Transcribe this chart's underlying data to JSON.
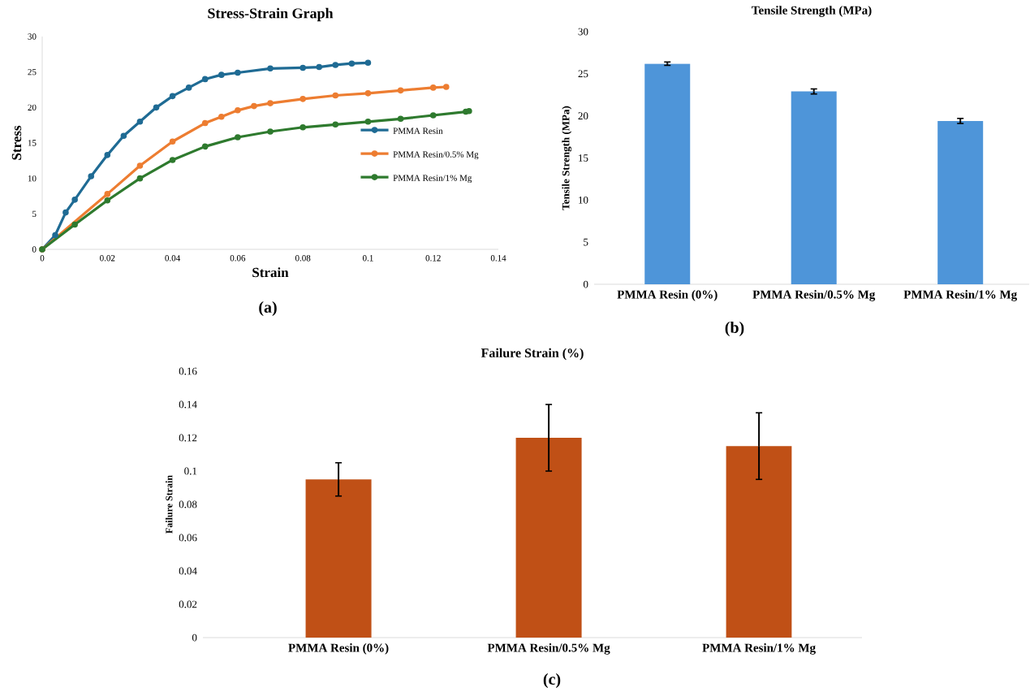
{
  "chart_data": [
    {
      "type": "line",
      "title": "Stress-Strain Graph",
      "xlabel": "Strain",
      "ylabel": "Stress",
      "annotations": [
        "(a)"
      ],
      "xlim": [
        0,
        0.14
      ],
      "xticks": [
        0,
        0.02,
        0.04,
        0.06,
        0.08,
        0.1,
        0.12,
        0.14
      ],
      "ylim": [
        0,
        30
      ],
      "yticks": [
        0,
        5,
        10,
        15,
        20,
        25,
        30
      ],
      "marker": "circle",
      "legend": "right",
      "series": [
        {
          "name": "PMMA Resin",
          "color": "#1f6b94",
          "x": [
            0,
            0.004,
            0.0072,
            0.01,
            0.015,
            0.02,
            0.025,
            0.03,
            0.035,
            0.04,
            0.045,
            0.05,
            0.055,
            0.06,
            0.07,
            0.08,
            0.085,
            0.09,
            0.095,
            0.1
          ],
          "values": [
            0,
            2,
            5.2,
            7,
            10.3,
            13.3,
            16,
            18,
            20,
            21.6,
            22.8,
            24,
            24.6,
            24.9,
            25.5,
            25.6,
            25.7,
            26,
            26.2,
            26.3
          ]
        },
        {
          "name": "PMMA Resin/0.5% Mg",
          "color": "#ed7d31",
          "x": [
            0,
            0.02,
            0.03,
            0.04,
            0.05,
            0.055,
            0.06,
            0.065,
            0.07,
            0.08,
            0.09,
            0.1,
            0.11,
            0.12,
            0.124
          ],
          "values": [
            0,
            7.8,
            11.8,
            15.2,
            17.8,
            18.7,
            19.6,
            20.2,
            20.6,
            21.2,
            21.7,
            22,
            22.4,
            22.8,
            22.9
          ]
        },
        {
          "name": "PMMA Resin/1% Mg",
          "color": "#2e7a2e",
          "x": [
            0,
            0.01,
            0.02,
            0.03,
            0.04,
            0.05,
            0.06,
            0.07,
            0.08,
            0.09,
            0.1,
            0.11,
            0.12,
            0.13,
            0.131
          ],
          "values": [
            0,
            3.5,
            6.9,
            10,
            12.6,
            14.5,
            15.8,
            16.6,
            17.2,
            17.6,
            18,
            18.4,
            18.9,
            19.4,
            19.5
          ]
        }
      ]
    },
    {
      "type": "bar",
      "title": "Tensile Strength (MPa)",
      "ylabel": "Tensile Strength (MPa)",
      "annotations": [
        "(b)"
      ],
      "categories": [
        "PMMA Resin (0%)",
        "PMMA Resin/0.5% Mg",
        "PMMA Resin/1% Mg"
      ],
      "values": [
        26.2,
        22.9,
        19.4
      ],
      "errors": [
        0.2,
        0.3,
        0.3
      ],
      "color": "#4e95d9",
      "ylim": [
        0,
        30
      ],
      "yticks": [
        0,
        5,
        10,
        15,
        20,
        25,
        30
      ]
    },
    {
      "type": "bar",
      "title": "Failure Strain (%)",
      "ylabel": "Failure Strain",
      "annotations": [
        "(c)"
      ],
      "categories": [
        "PMMA Resin (0%)",
        "PMMA Resin/0.5% Mg",
        "PMMA Resin/1% Mg"
      ],
      "values": [
        0.095,
        0.12,
        0.115
      ],
      "errors": [
        0.01,
        0.02,
        0.02
      ],
      "color": "#c05016",
      "ylim": [
        0,
        0.16
      ],
      "yticks": [
        0,
        0.02,
        0.04,
        0.06,
        0.08,
        0.1,
        0.12,
        0.14,
        0.16
      ]
    }
  ]
}
